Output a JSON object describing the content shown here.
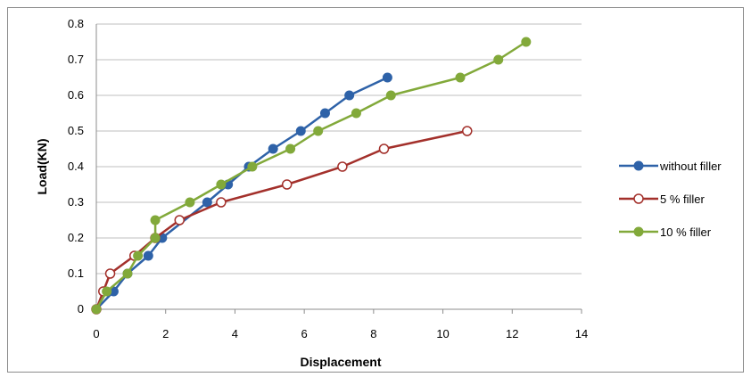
{
  "chart_data": {
    "type": "line",
    "title": "",
    "xlabel": "Displacement",
    "ylabel": "Load(KN)",
    "xlim": [
      0,
      14
    ],
    "ylim": [
      0,
      0.8
    ],
    "xticks": [
      "0",
      "2",
      "4",
      "6",
      "8",
      "10",
      "12",
      "14"
    ],
    "yticks": [
      "0",
      "0.1",
      "0.2",
      "0.3",
      "0.4",
      "0.5",
      "0.6",
      "0.7",
      "0.8"
    ],
    "grid": "horizontal",
    "legend_position": "right",
    "series": [
      {
        "name": "without filler",
        "color": "#2e62a8",
        "marker": "filled-circle",
        "x": [
          0,
          0.5,
          0.9,
          1.5,
          1.9,
          3.2,
          3.8,
          4.4,
          5.1,
          5.9,
          6.6,
          7.3,
          8.4
        ],
        "y": [
          0,
          0.05,
          0.1,
          0.15,
          0.2,
          0.3,
          0.35,
          0.4,
          0.45,
          0.5,
          0.55,
          0.6,
          0.65
        ]
      },
      {
        "name": "5 % filler",
        "color": "#a3302b",
        "marker": "hollow-circle",
        "x": [
          0,
          0.2,
          0.4,
          1.1,
          1.7,
          2.4,
          3.6,
          5.5,
          7.1,
          8.3,
          10.7
        ],
        "y": [
          0,
          0.05,
          0.1,
          0.15,
          0.2,
          0.25,
          0.3,
          0.35,
          0.4,
          0.45,
          0.5
        ]
      },
      {
        "name": "10 % filler",
        "color": "#82a93a",
        "marker": "filled-circle",
        "x": [
          0,
          0.3,
          0.9,
          1.2,
          1.7,
          1.7,
          2.7,
          3.6,
          4.5,
          5.6,
          6.4,
          7.5,
          8.5,
          10.5,
          11.6,
          12.4
        ],
        "y": [
          0,
          0.05,
          0.1,
          0.15,
          0.2,
          0.25,
          0.3,
          0.35,
          0.4,
          0.45,
          0.5,
          0.55,
          0.6,
          0.65,
          0.7,
          0.75
        ]
      }
    ]
  }
}
